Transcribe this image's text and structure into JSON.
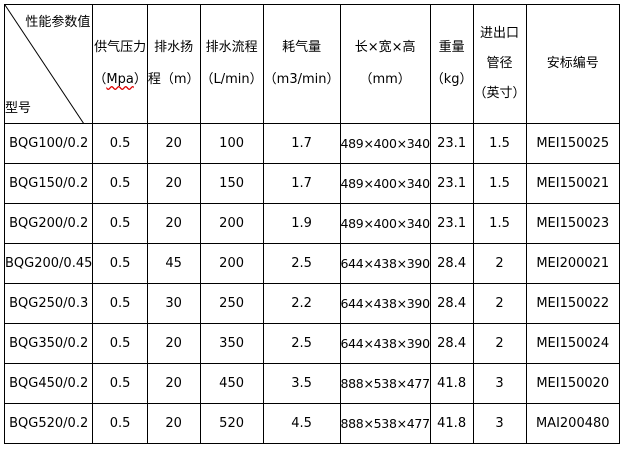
{
  "header": {
    "corner_top": "性能参数值",
    "corner_bottom": "型号",
    "columns": [
      {
        "l1": "供气压力",
        "l2": "（",
        "l2b": "Mpa",
        "l2c": "）"
      },
      {
        "l1": "排水扬",
        "l2": "程（m）"
      },
      {
        "l1": "排水流程",
        "l2": "（L/min）"
      },
      {
        "l1": "耗气量",
        "l2": "（m3/min）"
      },
      {
        "l1": "长×宽×高",
        "l2": "（mm）"
      },
      {
        "l1": "重量",
        "l2": "（kg）"
      },
      {
        "l1": "进出口",
        "l2": "管径",
        "l3": "（英寸）"
      },
      {
        "l1": "安标编号"
      }
    ]
  },
  "rows": [
    [
      "BQG100/0.2",
      "0.5",
      "20",
      "100",
      "1.7",
      "489×400×340",
      "23.1",
      "1.5",
      "MEI150025"
    ],
    [
      "BQG150/0.2",
      "0.5",
      "20",
      "150",
      "1.7",
      "489×400×340",
      "23.1",
      "1.5",
      "MEI150021"
    ],
    [
      "BQG200/0.2",
      "0.5",
      "20",
      "200",
      "1.9",
      "489×400×340",
      "23.1",
      "1.5",
      "MEI150023"
    ],
    [
      "BQG200/0.45",
      "0.5",
      "45",
      "200",
      "2.5",
      "644×438×390",
      "28.4",
      "2",
      "MEI200021"
    ],
    [
      "BQG250/0.3",
      "0.5",
      "30",
      "250",
      "2.2",
      "644×438×390",
      "28.4",
      "2",
      "MEI150022"
    ],
    [
      "BQG350/0.2",
      "0.5",
      "20",
      "350",
      "2.5",
      "644×438×390",
      "28.4",
      "2",
      "MEI150024"
    ],
    [
      "BQG450/0.2",
      "0.5",
      "20",
      "450",
      "3.5",
      "888×538×477",
      "41.8",
      "3",
      "MEI150020"
    ],
    [
      "BQG520/0.2",
      "0.5",
      "20",
      "520",
      "4.5",
      "888×538×477",
      "41.8",
      "3",
      "MAI200480"
    ]
  ]
}
